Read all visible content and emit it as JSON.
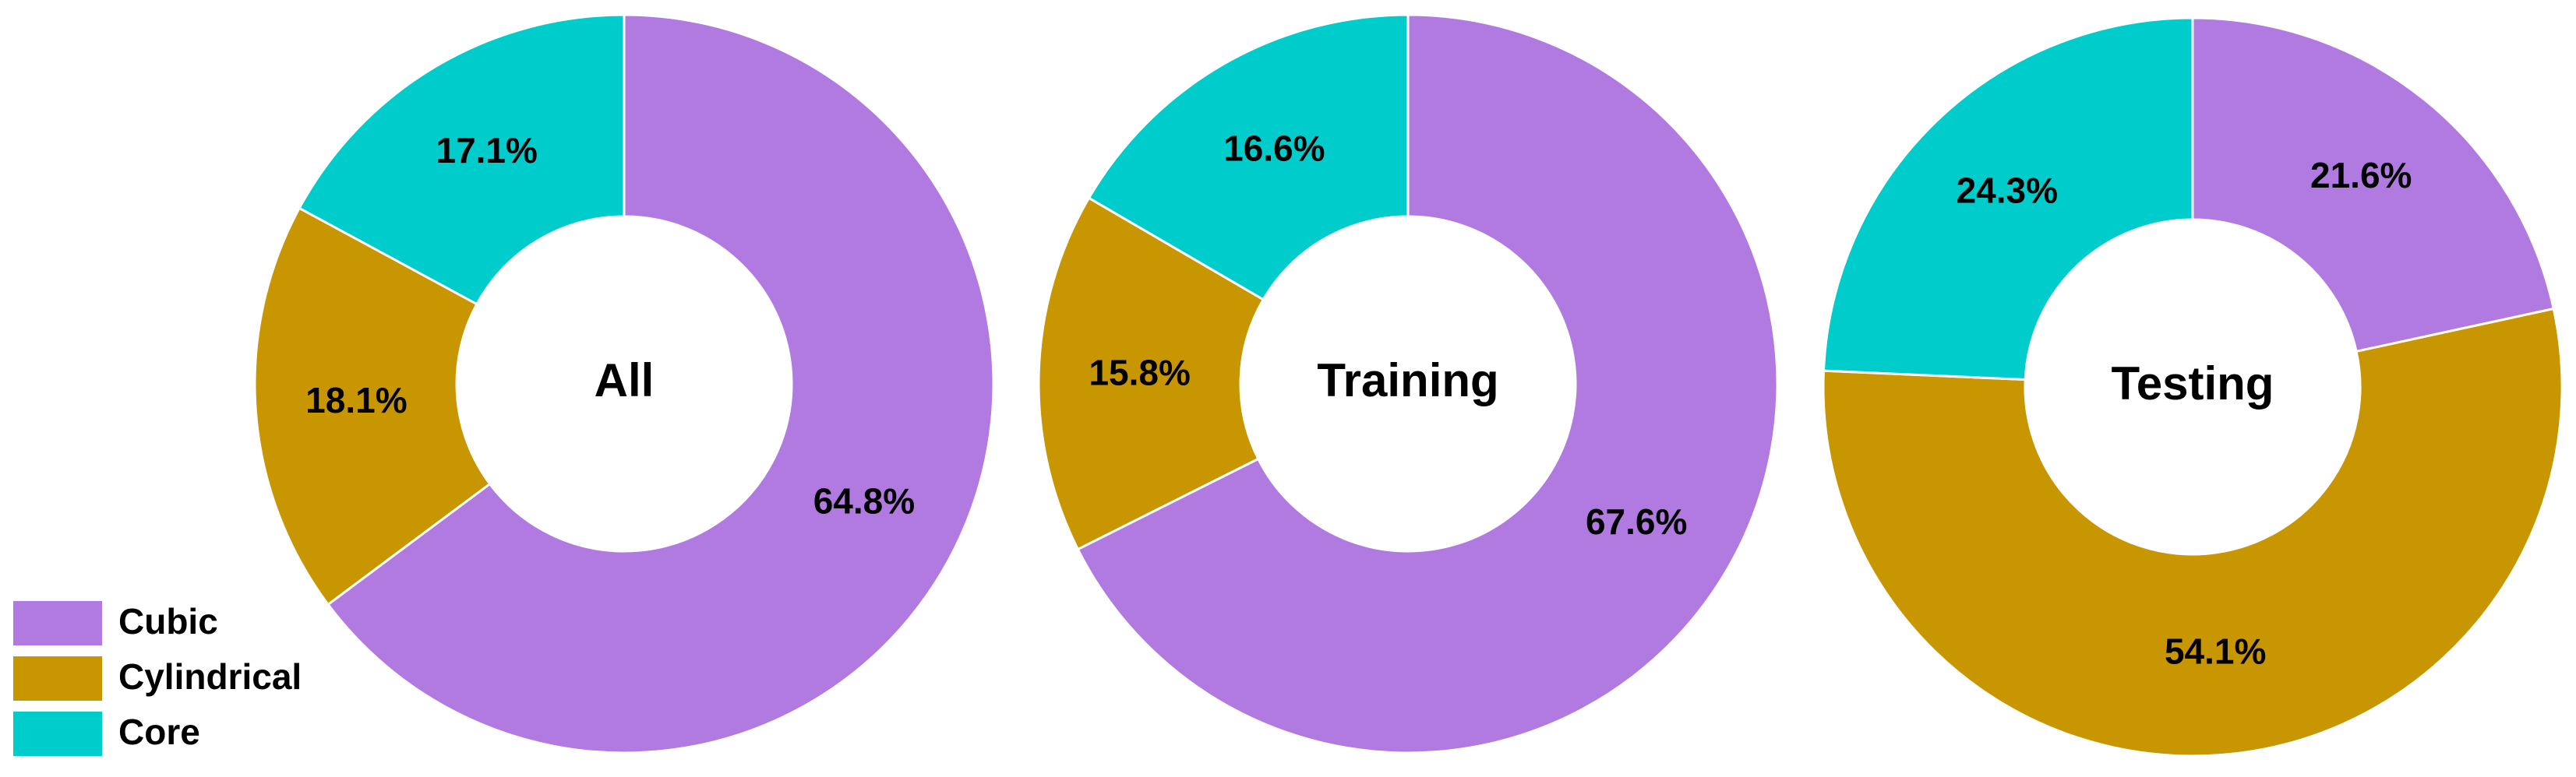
{
  "chart_data": [
    {
      "type": "pie",
      "title": "All",
      "categories": [
        "Cubic",
        "Cylindrical",
        "Core"
      ],
      "values": [
        64.8,
        18.1,
        17.1
      ],
      "value_labels": [
        "64.8%",
        "18.1%",
        "17.1%"
      ],
      "colors": [
        "#b07ae0",
        "#c89600",
        "#00cccc"
      ],
      "donut": true,
      "legend": "lower left"
    },
    {
      "type": "pie",
      "title": "Training",
      "categories": [
        "Cubic",
        "Cylindrical",
        "Core"
      ],
      "values": [
        67.6,
        15.8,
        16.6
      ],
      "value_labels": [
        "67.6%",
        "15.8%",
        "16.6%"
      ],
      "colors": [
        "#b07ae0",
        "#c89600",
        "#00cccc"
      ],
      "donut": true
    },
    {
      "type": "pie",
      "title": "Testing",
      "categories": [
        "Cubic",
        "Cylindrical",
        "Core"
      ],
      "values": [
        21.6,
        54.1,
        24.3
      ],
      "value_labels": [
        "21.6%",
        "54.1%",
        "24.3%"
      ],
      "colors": [
        "#b07ae0",
        "#c89600",
        "#00cccc"
      ],
      "donut": true
    }
  ]
}
